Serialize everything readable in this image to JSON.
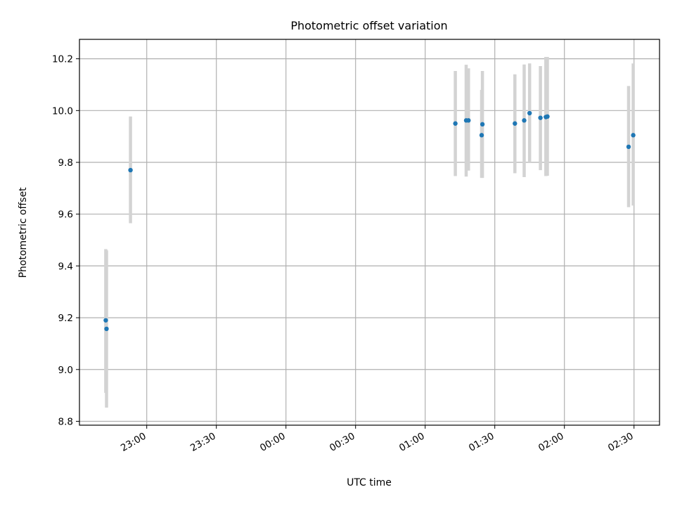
{
  "chart_data": {
    "type": "scatter",
    "title": "Photometric offset variation",
    "xlabel": "UTC time",
    "ylabel": "Photometric offset",
    "x_unit": "hours",
    "x_tick_values": [
      23.0,
      23.5,
      24.0,
      24.5,
      25.0,
      25.5,
      26.0,
      26.5
    ],
    "x_tick_labels": [
      "23:00",
      "23:30",
      "00:00",
      "00:30",
      "01:00",
      "01:30",
      "02:00",
      "02:30"
    ],
    "xlim": [
      22.5167,
      26.6833
    ],
    "y_tick_values": [
      8.8,
      9.0,
      9.2,
      9.4,
      9.6,
      9.8,
      10.0,
      10.2
    ],
    "y_tick_labels": [
      "8.8",
      "9.0",
      "9.2",
      "9.4",
      "9.6",
      "9.8",
      "10.0",
      "10.2"
    ],
    "ylim": [
      8.785,
      10.275
    ],
    "grid": true,
    "marker_color": "#1f77b4",
    "errorbar_color": "#d3d3d3",
    "points": [
      {
        "x": 22.7056,
        "y": 9.19,
        "ylo": 8.91,
        "yhi": 9.465
      },
      {
        "x": 22.7111,
        "y": 9.157,
        "ylo": 8.853,
        "yhi": 9.46
      },
      {
        "x": 22.8833,
        "y": 9.77,
        "ylo": 9.565,
        "yhi": 9.977
      },
      {
        "x": 25.2167,
        "y": 9.95,
        "ylo": 9.747,
        "yhi": 10.153
      },
      {
        "x": 25.2944,
        "y": 9.962,
        "ylo": 9.745,
        "yhi": 10.177
      },
      {
        "x": 25.3111,
        "y": 9.962,
        "ylo": 9.768,
        "yhi": 10.163
      },
      {
        "x": 25.4056,
        "y": 9.905,
        "ylo": 9.74,
        "yhi": 10.08
      },
      {
        "x": 25.4111,
        "y": 9.947,
        "ylo": 9.74,
        "yhi": 10.153
      },
      {
        "x": 25.6444,
        "y": 9.95,
        "ylo": 9.758,
        "yhi": 10.14
      },
      {
        "x": 25.7111,
        "y": 9.962,
        "ylo": 9.743,
        "yhi": 10.178
      },
      {
        "x": 25.75,
        "y": 9.99,
        "ylo": 9.8,
        "yhi": 10.182
      },
      {
        "x": 25.8278,
        "y": 9.972,
        "ylo": 9.77,
        "yhi": 10.172
      },
      {
        "x": 25.8667,
        "y": 9.975,
        "ylo": 9.747,
        "yhi": 10.207
      },
      {
        "x": 25.8778,
        "y": 9.977,
        "ylo": 9.748,
        "yhi": 10.207
      },
      {
        "x": 26.4611,
        "y": 9.86,
        "ylo": 9.627,
        "yhi": 10.095
      },
      {
        "x": 26.4944,
        "y": 9.905,
        "ylo": 9.633,
        "yhi": 10.182
      }
    ]
  }
}
